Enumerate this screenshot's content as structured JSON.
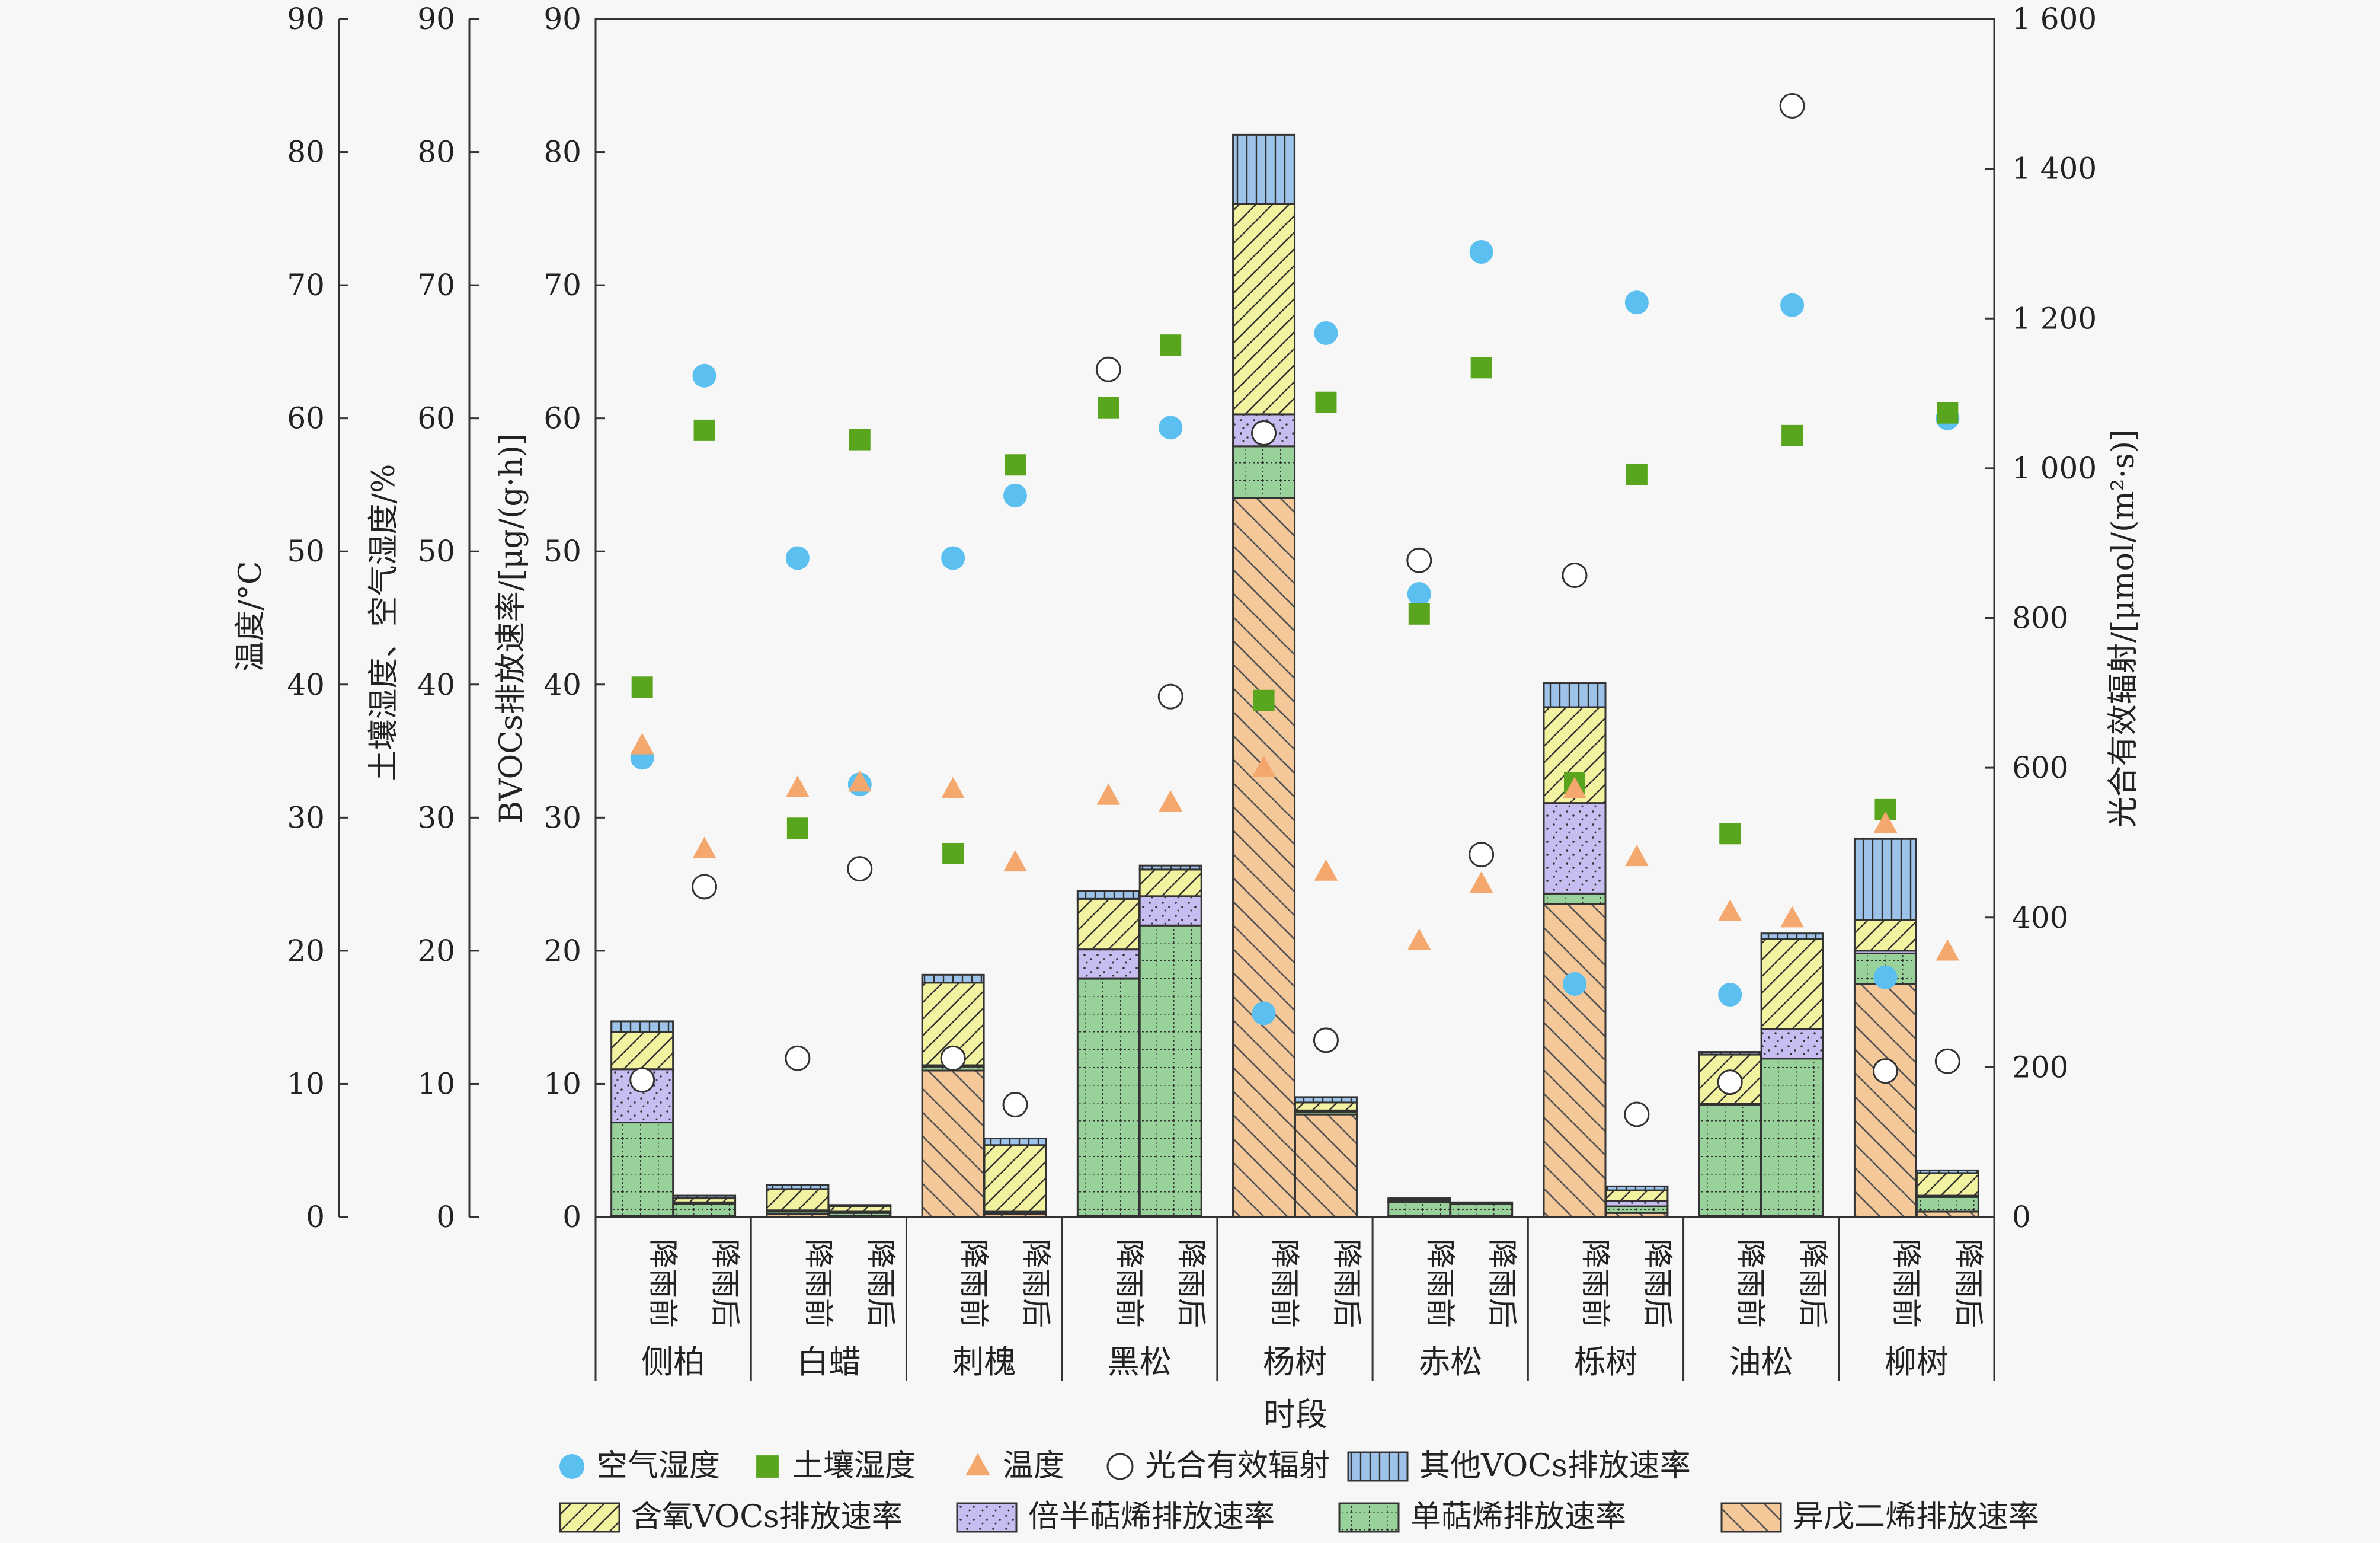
{
  "chart_data": {
    "type": "bar",
    "stacked": true,
    "xlabel": "时段",
    "ylabel_temp": "温度/°C",
    "ylabel_hum": "土壤湿度、空气湿度/%",
    "ylabel_rate": "BVOCs排放速率/[μg/(g·h)]",
    "ylabel_par": "光合有效辐射/[μmol/(m²·s)]",
    "ylim": [
      0,
      90
    ],
    "ylim_right": [
      0,
      1600
    ],
    "yticks": [
      "0",
      "10",
      "20",
      "30",
      "40",
      "50",
      "60",
      "70",
      "80",
      "90"
    ],
    "yticks_right": [
      "0",
      "200",
      "400",
      "600",
      "800",
      "1 000",
      "1 200",
      "1 400",
      "1 600"
    ],
    "species": [
      "侧柏",
      "白蜡",
      "刺槐",
      "黑松",
      "杨树",
      "赤松",
      "栎树",
      "油松",
      "柳树"
    ],
    "periods": [
      "降雨前",
      "降雨后"
    ],
    "colors": {
      "isoprene": "#f5c89a",
      "monoterpene": "#98d29a",
      "sesquiterpene": "#c8bdf0",
      "oxygenated": "#f2f2a0",
      "other": "#9dc3ea",
      "air_humidity": "#5bc0f0",
      "soil_humidity": "#5aa51e",
      "temperature": "#f5a86e",
      "par": "#ffffff"
    },
    "series": [
      {
        "name": "异戊二烯排放速率",
        "key": "isoprene",
        "values": [
          0.1,
          0.1,
          0.2,
          0.1,
          11.0,
          0.2,
          0.1,
          0.1,
          54.0,
          7.7,
          0.1,
          0.1,
          23.5,
          0.3,
          0.1,
          0.1,
          17.5,
          0.4
        ]
      },
      {
        "name": "单萜烯排放速率",
        "key": "monoterpene",
        "values": [
          7.0,
          0.9,
          0.2,
          0.2,
          0.3,
          0.1,
          17.8,
          21.8,
          3.9,
          0.2,
          1.0,
          0.9,
          0.8,
          0.5,
          8.3,
          11.8,
          2.3,
          1.1
        ]
      },
      {
        "name": "倍半萜烯排放速率",
        "key": "sesquiterpene",
        "values": [
          4.0,
          0.1,
          0.1,
          0.1,
          0.1,
          0.1,
          2.2,
          2.2,
          2.4,
          0.1,
          0.1,
          0.1,
          6.8,
          0.4,
          0.1,
          2.2,
          0.2,
          0.1
        ]
      },
      {
        "name": "含氧VOCs排放速率",
        "key": "oxygenated",
        "values": [
          2.8,
          0.3,
          1.6,
          0.4,
          6.2,
          5.0,
          3.8,
          2.0,
          15.8,
          0.6,
          0.1,
          0.0,
          7.2,
          0.8,
          3.7,
          6.8,
          2.3,
          1.7
        ]
      },
      {
        "name": "其他VOCs排放速率",
        "key": "other",
        "values": [
          0.8,
          0.2,
          0.3,
          0.1,
          0.6,
          0.5,
          0.6,
          0.3,
          5.2,
          0.4,
          0.1,
          0.0,
          1.8,
          0.3,
          0.2,
          0.4,
          6.1,
          0.2
        ]
      }
    ],
    "scatter": [
      {
        "name": "空气湿度",
        "key": "air_humidity",
        "marker": "circle-filled",
        "values": [
          34.5,
          63.2,
          49.5,
          32.5,
          49.5,
          54.2,
          63.6,
          59.3,
          15.3,
          66.4,
          46.8,
          72.5,
          17.5,
          68.7,
          16.7,
          68.5,
          18.0,
          60.0
        ]
      },
      {
        "name": "土壤湿度",
        "key": "soil_humidity",
        "marker": "square",
        "values": [
          39.8,
          59.1,
          29.2,
          58.4,
          27.3,
          56.5,
          60.8,
          65.5,
          38.8,
          61.2,
          45.3,
          63.8,
          32.6,
          55.8,
          28.8,
          58.7,
          30.6,
          60.4
        ]
      },
      {
        "name": "温度",
        "key": "temperature",
        "marker": "triangle",
        "values": [
          35.4,
          27.6,
          32.2,
          32.6,
          32.1,
          26.6,
          31.6,
          31.1,
          33.7,
          25.9,
          20.7,
          25.0,
          32.1,
          27.0,
          22.9,
          22.4,
          29.5,
          19.9
        ]
      },
      {
        "name": "光合有效辐射",
        "key": "par",
        "marker": "circle-open",
        "axis": "right",
        "values": [
          183,
          441,
          212,
          465,
          212,
          150,
          1132,
          695,
          1047,
          236,
          877,
          484,
          857,
          137,
          180,
          1484,
          195,
          208
        ]
      }
    ],
    "legend": [
      {
        "label": "空气湿度",
        "key": "air_humidity",
        "marker": "circle-filled"
      },
      {
        "label": "土壤湿度",
        "key": "soil_humidity",
        "marker": "square"
      },
      {
        "label": "温度",
        "key": "temperature",
        "marker": "triangle"
      },
      {
        "label": "光合有效辐射",
        "key": "par",
        "marker": "circle-open"
      },
      {
        "label": "其他VOCs排放速率",
        "key": "other",
        "marker": "bar"
      },
      {
        "label": "含氧VOCs排放速率",
        "key": "oxygenated",
        "marker": "bar"
      },
      {
        "label": "倍半萜烯排放速率",
        "key": "sesquiterpene",
        "marker": "bar"
      },
      {
        "label": "单萜烯排放速率",
        "key": "monoterpene",
        "marker": "bar"
      },
      {
        "label": "异戊二烯排放速率",
        "key": "isoprene",
        "marker": "bar"
      }
    ]
  }
}
